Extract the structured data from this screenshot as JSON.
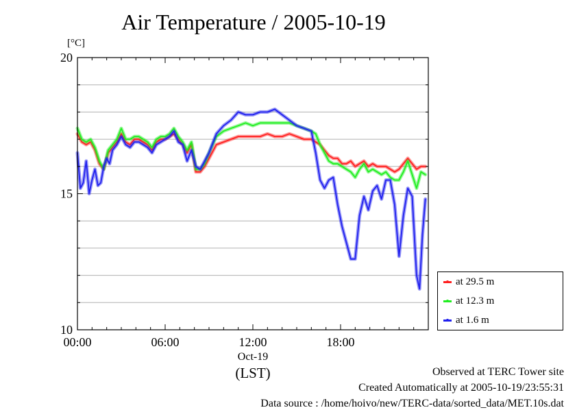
{
  "chart_data": {
    "type": "line",
    "title": "Air Temperature / 2005-10-19",
    "ylabel": "[°C]",
    "xlabel": "(LST)",
    "date_label": "Oct-19",
    "ylim": [
      10,
      20
    ],
    "xlim": [
      0,
      24
    ],
    "y_ticks": [
      "10",
      "15",
      "20"
    ],
    "x_ticks": [
      {
        "value": 0,
        "label": "00:00"
      },
      {
        "value": 6,
        "label": "06:00"
      },
      {
        "value": 12,
        "label": "12:00"
      },
      {
        "value": 18,
        "label": "18:00"
      }
    ],
    "grid": true,
    "legend_position": "bottom-right, outside plot",
    "x_units": "hours LST",
    "series": [
      {
        "name": "at 29.5 m",
        "color": "#ff2020",
        "x": [
          0.0,
          0.3,
          0.6,
          0.9,
          1.2,
          1.5,
          1.8,
          2.1,
          2.4,
          2.7,
          3.0,
          3.3,
          3.6,
          3.9,
          4.2,
          4.5,
          4.8,
          5.1,
          5.4,
          5.7,
          6.0,
          6.3,
          6.6,
          6.9,
          7.2,
          7.5,
          7.8,
          8.1,
          8.4,
          8.7,
          9.0,
          9.5,
          10.0,
          10.5,
          11.0,
          11.5,
          12.0,
          12.5,
          13.0,
          13.5,
          14.0,
          14.5,
          15.0,
          15.5,
          16.0,
          16.3,
          16.6,
          16.9,
          17.2,
          17.5,
          17.8,
          18.1,
          18.4,
          18.7,
          19.0,
          19.3,
          19.6,
          19.9,
          20.2,
          20.5,
          20.8,
          21.1,
          21.4,
          21.7,
          22.0,
          22.3,
          22.6,
          22.9,
          23.2,
          23.5,
          23.8
        ],
        "values": [
          17.2,
          16.9,
          16.8,
          16.9,
          16.6,
          16.1,
          15.9,
          16.5,
          16.7,
          16.9,
          17.2,
          16.9,
          16.8,
          17.0,
          17.0,
          16.9,
          16.8,
          16.6,
          16.9,
          17.0,
          17.0,
          17.1,
          17.2,
          17.0,
          16.8,
          16.5,
          16.8,
          15.8,
          15.8,
          16.0,
          16.3,
          16.8,
          16.9,
          17.0,
          17.1,
          17.1,
          17.1,
          17.1,
          17.2,
          17.1,
          17.1,
          17.2,
          17.1,
          17.0,
          17.0,
          16.9,
          16.8,
          16.6,
          16.4,
          16.3,
          16.3,
          16.1,
          16.1,
          16.2,
          16.0,
          16.1,
          16.2,
          16.0,
          16.1,
          16.0,
          16.0,
          16.0,
          15.9,
          15.8,
          15.9,
          16.1,
          16.3,
          16.1,
          15.9,
          16.0,
          16.0
        ]
      },
      {
        "name": "at 12.3 m",
        "color": "#20ee20",
        "x": [
          0.0,
          0.3,
          0.6,
          0.9,
          1.2,
          1.5,
          1.8,
          2.1,
          2.4,
          2.7,
          3.0,
          3.3,
          3.6,
          3.9,
          4.2,
          4.5,
          4.8,
          5.1,
          5.4,
          5.7,
          6.0,
          6.3,
          6.6,
          6.9,
          7.2,
          7.5,
          7.8,
          8.1,
          8.4,
          8.7,
          9.0,
          9.5,
          10.0,
          10.5,
          11.0,
          11.5,
          12.0,
          12.5,
          13.0,
          13.5,
          14.0,
          14.5,
          15.0,
          15.5,
          16.0,
          16.3,
          16.6,
          16.9,
          17.2,
          17.5,
          17.8,
          18.1,
          18.4,
          18.7,
          19.0,
          19.3,
          19.6,
          19.9,
          20.2,
          20.5,
          20.8,
          21.1,
          21.4,
          21.7,
          22.0,
          22.3,
          22.6,
          22.9,
          23.2,
          23.5,
          23.8
        ],
        "values": [
          17.4,
          17.0,
          16.9,
          17.0,
          16.7,
          16.2,
          15.9,
          16.6,
          16.8,
          17.0,
          17.4,
          17.0,
          17.0,
          17.1,
          17.1,
          17.0,
          16.9,
          16.7,
          17.0,
          17.1,
          17.1,
          17.2,
          17.4,
          17.1,
          16.9,
          16.6,
          16.9,
          15.9,
          15.9,
          16.1,
          16.5,
          17.1,
          17.3,
          17.4,
          17.5,
          17.6,
          17.5,
          17.6,
          17.6,
          17.6,
          17.6,
          17.6,
          17.5,
          17.4,
          17.3,
          17.2,
          16.8,
          16.5,
          16.2,
          16.1,
          16.1,
          16.0,
          15.9,
          15.8,
          15.6,
          15.9,
          16.1,
          15.8,
          15.9,
          15.8,
          15.7,
          15.8,
          15.6,
          15.5,
          15.5,
          15.8,
          16.2,
          15.7,
          15.2,
          15.8,
          15.7
        ]
      },
      {
        "name": "at 1.6 m",
        "color": "#2020ee",
        "x": [
          0.0,
          0.2,
          0.4,
          0.6,
          0.8,
          1.0,
          1.2,
          1.4,
          1.6,
          1.8,
          2.0,
          2.2,
          2.4,
          2.7,
          3.0,
          3.3,
          3.6,
          3.9,
          4.2,
          4.5,
          4.8,
          5.1,
          5.4,
          5.7,
          6.0,
          6.3,
          6.6,
          6.9,
          7.2,
          7.5,
          7.8,
          8.1,
          8.4,
          8.7,
          9.0,
          9.5,
          10.0,
          10.5,
          11.0,
          11.5,
          12.0,
          12.5,
          13.0,
          13.5,
          14.0,
          14.5,
          15.0,
          15.5,
          16.0,
          16.3,
          16.6,
          16.9,
          17.2,
          17.5,
          17.8,
          18.1,
          18.4,
          18.7,
          19.0,
          19.3,
          19.6,
          19.9,
          20.2,
          20.5,
          20.8,
          21.1,
          21.4,
          21.7,
          22.0,
          22.3,
          22.6,
          22.9,
          23.2,
          23.4,
          23.6,
          23.8
        ],
        "values": [
          16.5,
          15.2,
          15.4,
          16.2,
          15.0,
          15.5,
          15.9,
          15.3,
          15.4,
          16.0,
          16.3,
          16.1,
          16.6,
          16.8,
          17.1,
          16.8,
          16.7,
          16.9,
          16.9,
          16.8,
          16.7,
          16.5,
          16.8,
          16.9,
          17.0,
          17.1,
          17.3,
          16.9,
          16.8,
          16.2,
          16.6,
          16.0,
          15.9,
          16.2,
          16.5,
          17.2,
          17.5,
          17.7,
          18.0,
          17.9,
          17.9,
          18.0,
          18.0,
          18.1,
          17.9,
          17.7,
          17.5,
          17.4,
          17.3,
          16.5,
          15.5,
          15.2,
          15.5,
          15.6,
          14.6,
          13.8,
          13.2,
          12.6,
          12.6,
          14.2,
          14.9,
          14.4,
          15.1,
          15.3,
          14.8,
          15.5,
          15.5,
          14.6,
          12.7,
          14.2,
          15.2,
          14.9,
          12.0,
          11.5,
          13.5,
          14.8
        ]
      }
    ]
  }
}
